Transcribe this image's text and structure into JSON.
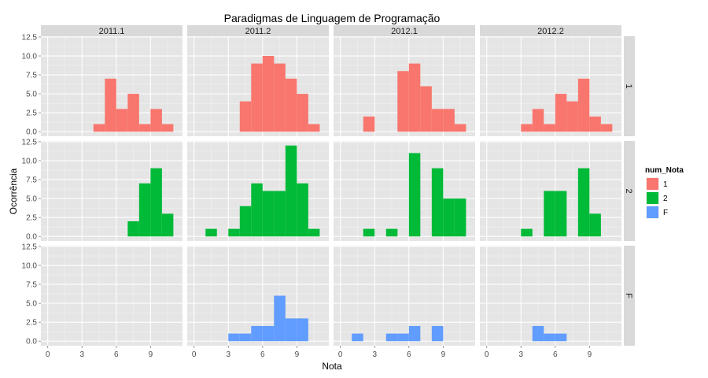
{
  "chart_data": {
    "type": "bar",
    "title": "Paradigmas de Linguagem de Programação",
    "xlabel": "Nota",
    "ylabel": "Ocorrência",
    "xlim": [
      -0.6,
      11.8
    ],
    "ylim": [
      -0.6,
      12.6
    ],
    "x_ticks": [
      0,
      3,
      6,
      9
    ],
    "x_tick_labels": [
      "0",
      "3",
      "6",
      "9"
    ],
    "y_ticks": [
      0,
      2.5,
      5,
      7.5,
      10,
      12.5
    ],
    "y_tick_labels": [
      "0.0",
      "2.5",
      "5.0",
      "7.5",
      "10.0",
      "12.5"
    ],
    "bin_width": 1,
    "grid": true,
    "legend": {
      "title": "num_Nota",
      "position": "right",
      "entries": [
        {
          "label": "1",
          "color": "#F8766D"
        },
        {
          "label": "2",
          "color": "#00BA38"
        },
        {
          "label": "F",
          "color": "#619CFF"
        }
      ]
    },
    "columns": [
      "2011.1",
      "2011.2",
      "2012.1",
      "2012.2"
    ],
    "rows": [
      "1",
      "2",
      "F"
    ],
    "panels": [
      {
        "column": "2011.1",
        "row": "1",
        "bins": [
          [
            4,
            1
          ],
          [
            5,
            7
          ],
          [
            6,
            3
          ],
          [
            7,
            5
          ],
          [
            8,
            1
          ],
          [
            9,
            3
          ],
          [
            10,
            1
          ]
        ]
      },
      {
        "column": "2011.2",
        "row": "1",
        "bins": [
          [
            4,
            4
          ],
          [
            5,
            9
          ],
          [
            6,
            10
          ],
          [
            7,
            9
          ],
          [
            8,
            7
          ],
          [
            9,
            5
          ],
          [
            10,
            1
          ]
        ]
      },
      {
        "column": "2012.1",
        "row": "1",
        "bins": [
          [
            2,
            2
          ],
          [
            5,
            8
          ],
          [
            6,
            9
          ],
          [
            7,
            6
          ],
          [
            8,
            3
          ],
          [
            9,
            3
          ],
          [
            10,
            1
          ]
        ]
      },
      {
        "column": "2012.2",
        "row": "1",
        "bins": [
          [
            3,
            1
          ],
          [
            4,
            3
          ],
          [
            5,
            1
          ],
          [
            6,
            5
          ],
          [
            7,
            4
          ],
          [
            8,
            7
          ],
          [
            9,
            2
          ],
          [
            10,
            1
          ]
        ]
      },
      {
        "column": "2011.1",
        "row": "2",
        "bins": [
          [
            7,
            2
          ],
          [
            8,
            7
          ],
          [
            9,
            9
          ],
          [
            10,
            3
          ]
        ]
      },
      {
        "column": "2011.2",
        "row": "2",
        "bins": [
          [
            1,
            1
          ],
          [
            3,
            1
          ],
          [
            4,
            4
          ],
          [
            5,
            7
          ],
          [
            6,
            6
          ],
          [
            7,
            6
          ],
          [
            8,
            12
          ],
          [
            9,
            7
          ],
          [
            10,
            1
          ]
        ]
      },
      {
        "column": "2012.1",
        "row": "2",
        "bins": [
          [
            2,
            1
          ],
          [
            4,
            1
          ],
          [
            6,
            11
          ],
          [
            8,
            9
          ],
          [
            9,
            5
          ],
          [
            10,
            5
          ]
        ]
      },
      {
        "column": "2012.2",
        "row": "2",
        "bins": [
          [
            3,
            1
          ],
          [
            5,
            6
          ],
          [
            6,
            6
          ],
          [
            8,
            9
          ],
          [
            9,
            3
          ]
        ]
      },
      {
        "column": "2011.1",
        "row": "F",
        "bins": []
      },
      {
        "column": "2011.2",
        "row": "F",
        "bins": [
          [
            3,
            1
          ],
          [
            4,
            1
          ],
          [
            5,
            2
          ],
          [
            6,
            2
          ],
          [
            7,
            6
          ],
          [
            8,
            3
          ],
          [
            9,
            3
          ]
        ]
      },
      {
        "column": "2012.1",
        "row": "F",
        "bins": [
          [
            1,
            1
          ],
          [
            4,
            1
          ],
          [
            5,
            1
          ],
          [
            6,
            2
          ],
          [
            8,
            2
          ]
        ]
      },
      {
        "column": "2012.2",
        "row": "F",
        "bins": [
          [
            4,
            2
          ],
          [
            5,
            1
          ],
          [
            6,
            1
          ]
        ]
      }
    ]
  }
}
